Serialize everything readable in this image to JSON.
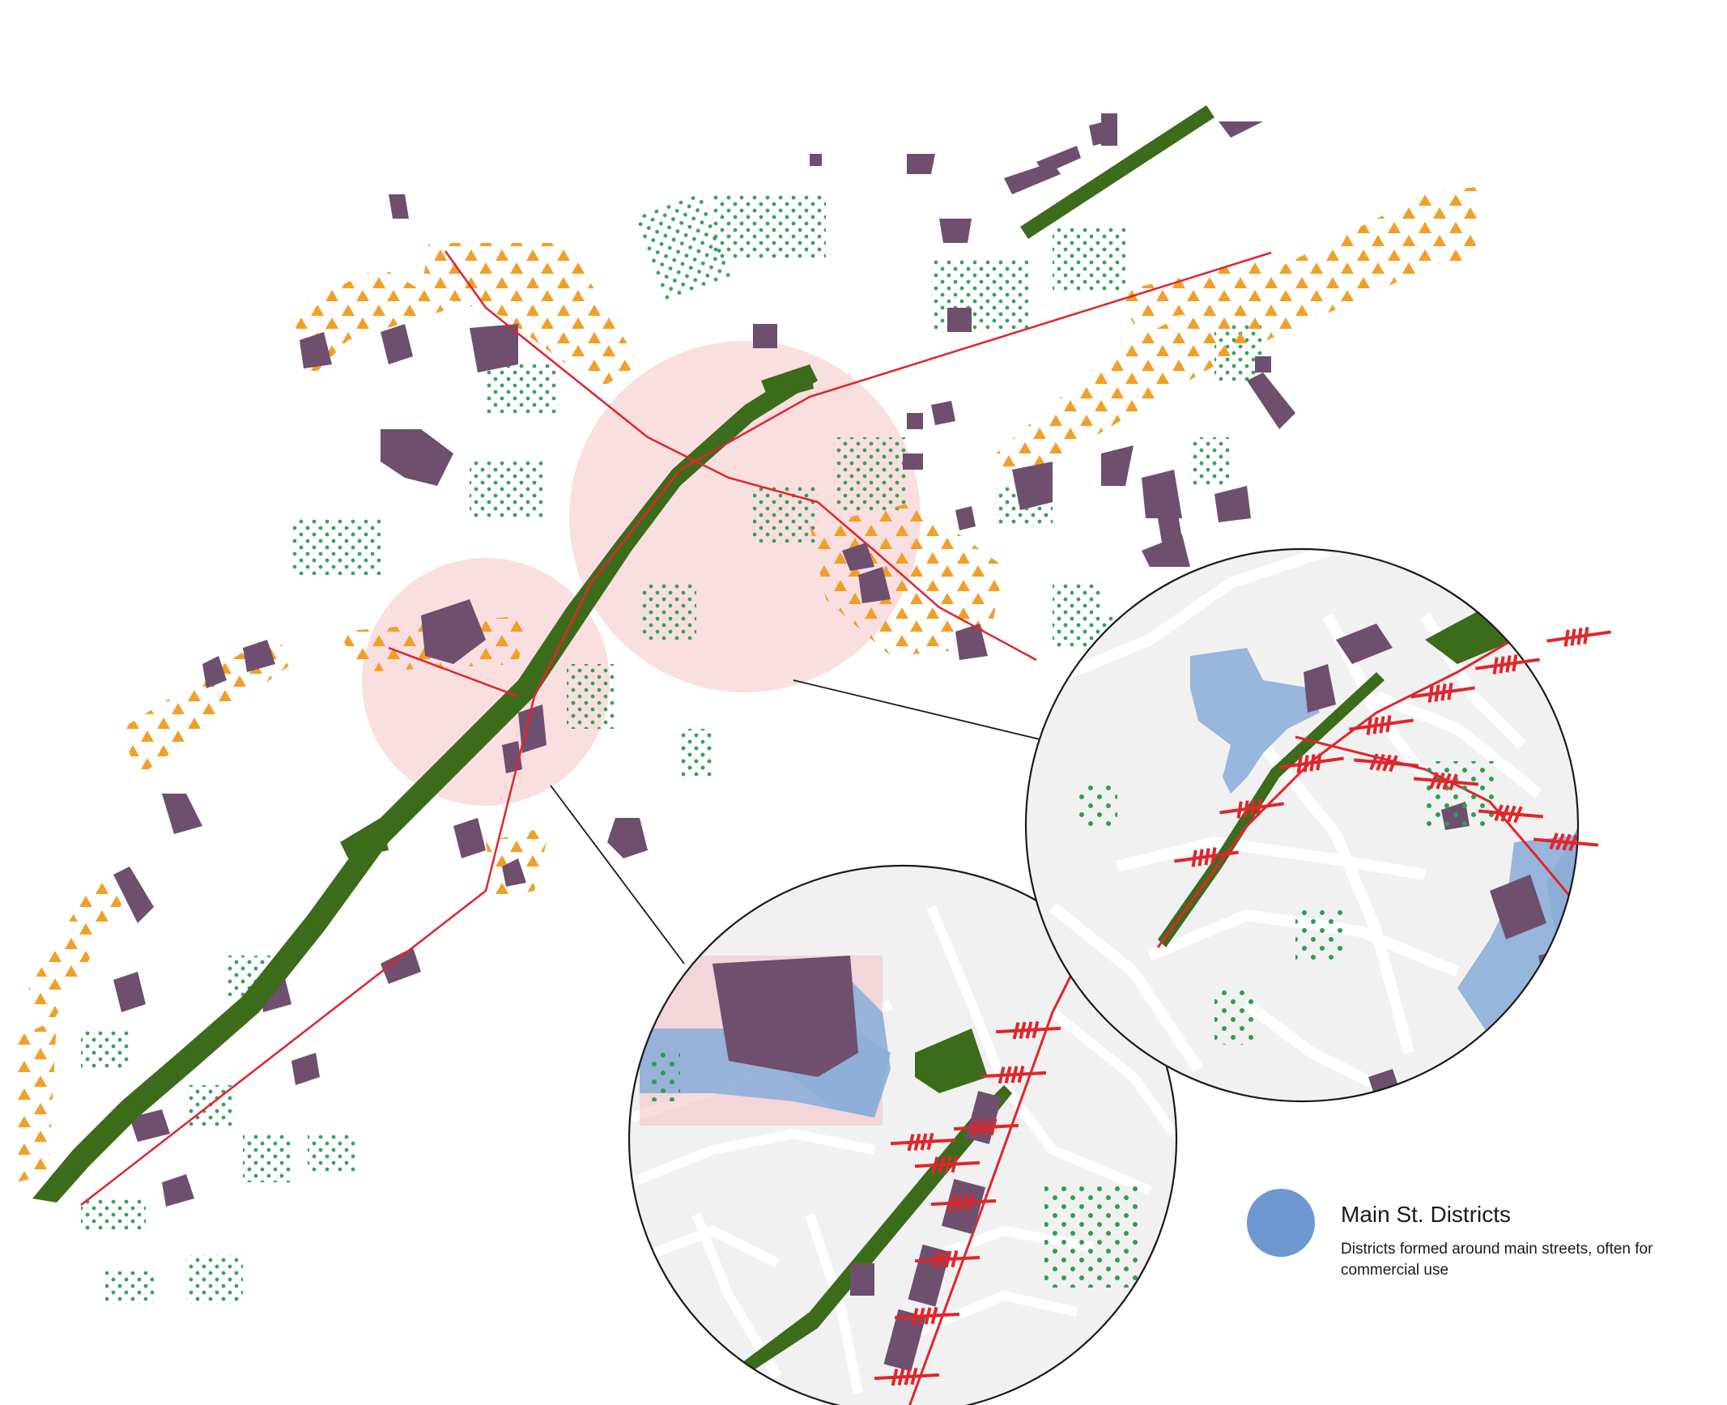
{
  "legend": {
    "title": "Main St. Districts",
    "description": "Districts formed around main streets, often for commercial use",
    "swatch_color": "#6f98d0"
  },
  "colors": {
    "building": "#6e4f6e",
    "green_corridor": "#3c6b1c",
    "green_dots": "#2e9d55",
    "orange_triangles": "#f0a029",
    "main_street": "#e0252b",
    "focus_area": "#f9dfe0",
    "inset_background": "#f1f1f1",
    "inset_streets": "#ffffff",
    "district_fill": "#8eaed8"
  },
  "icons": {
    "legend_swatch": "circle",
    "crossing_marker": "red-hatch-crossing"
  }
}
